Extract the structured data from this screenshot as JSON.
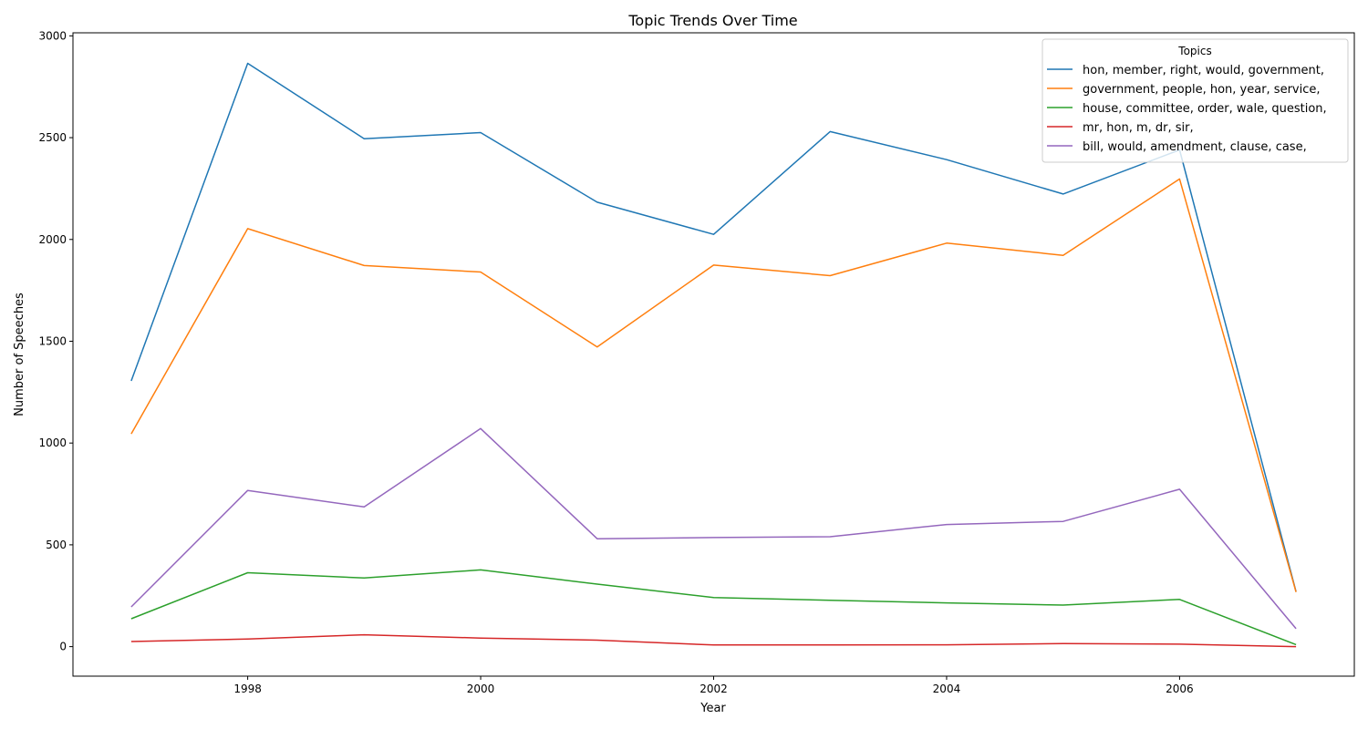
{
  "chart_data": {
    "type": "line",
    "title": "Topic Trends Over Time",
    "xlabel": "Year",
    "ylabel": "Number of Speeches",
    "x": [
      1997,
      1998,
      1999,
      2000,
      2001,
      2002,
      2003,
      2004,
      2005,
      2006,
      2007
    ],
    "xlim": [
      1996.5,
      2007.5
    ],
    "ylim": [
      -145,
      3015
    ],
    "xticks": [
      1998,
      2000,
      2002,
      2004,
      2006
    ],
    "yticks": [
      0,
      500,
      1000,
      1500,
      2000,
      2500,
      3000
    ],
    "grid": false,
    "legend": {
      "title": "Topics",
      "placement": "top-right"
    },
    "series": [
      {
        "name": "hon, member, right, would, government,",
        "color": "#1f77b4",
        "values": [
          1305,
          2865,
          2495,
          2525,
          2183,
          2025,
          2530,
          2392,
          2223,
          2440,
          270
        ]
      },
      {
        "name": "government, people, hon, year, service,",
        "color": "#ff7f0e",
        "values": [
          1045,
          2053,
          1872,
          1840,
          1472,
          1874,
          1822,
          1982,
          1922,
          2297,
          268
        ]
      },
      {
        "name": "house, committee, order, wale, question,",
        "color": "#2ca02c",
        "values": [
          137,
          363,
          337,
          377,
          307,
          241,
          228,
          215,
          204,
          232,
          10
        ]
      },
      {
        "name": "mr, hon, m, dr, sir,",
        "color": "#d62728",
        "values": [
          25,
          37,
          58,
          42,
          32,
          8,
          8,
          9,
          15,
          12,
          0
        ]
      },
      {
        "name": "bill, would, amendment, clause, case,",
        "color": "#9467bd",
        "values": [
          195,
          767,
          686,
          1071,
          530,
          536,
          540,
          600,
          615,
          773,
          88
        ]
      }
    ]
  }
}
